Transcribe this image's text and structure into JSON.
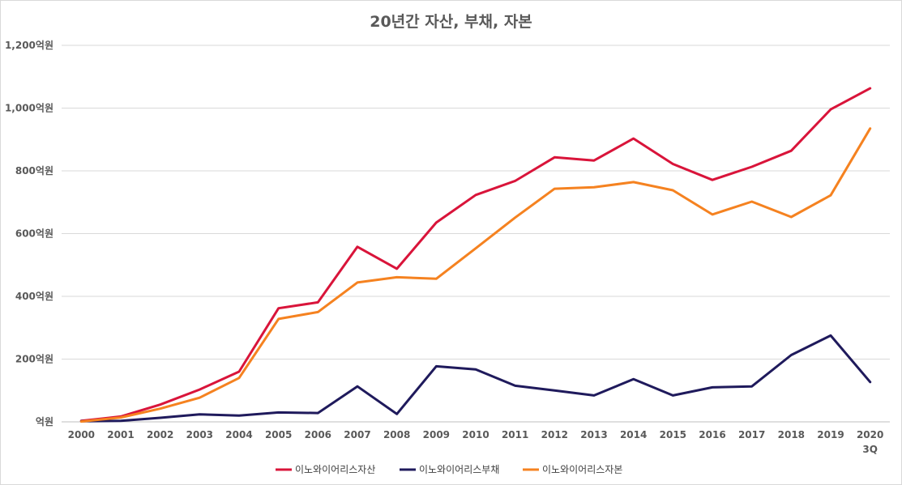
{
  "chart_data": {
    "type": "line",
    "title": "20년간 자산, 부채, 자본",
    "categories": [
      "2000",
      "2001",
      "2002",
      "2003",
      "2004",
      "2005",
      "2006",
      "2007",
      "2008",
      "2009",
      "2010",
      "2011",
      "2012",
      "2013",
      "2014",
      "2015",
      "2016",
      "2017",
      "2018",
      "2019",
      "2020\n3Q"
    ],
    "yticks": [
      "억원",
      "200억원",
      "400억원",
      "600억원",
      "800억원",
      "1,000억원",
      "1,200억원"
    ],
    "ylim": [
      0,
      1200
    ],
    "grid": true,
    "legend": "bottom",
    "series": [
      {
        "name": "이노와이어리스자산",
        "color": "#d9143a",
        "values": [
          3,
          17,
          55,
          103,
          160,
          362,
          381,
          558,
          488,
          635,
          723,
          768,
          843,
          833,
          903,
          822,
          771,
          813,
          864,
          996,
          1063
        ]
      },
      {
        "name": "이노와이어리스부채",
        "color": "#1f1a5c",
        "values": [
          2,
          3,
          13,
          24,
          20,
          30,
          28,
          113,
          25,
          177,
          167,
          115,
          100,
          84,
          136,
          84,
          110,
          113,
          213,
          275,
          127
        ]
      },
      {
        "name": "이노와이어리스자본",
        "color": "#f58220",
        "values": [
          1,
          14,
          42,
          77,
          140,
          328,
          350,
          444,
          461,
          456,
          553,
          651,
          743,
          748,
          764,
          738,
          661,
          702,
          653,
          722,
          935
        ]
      }
    ]
  }
}
